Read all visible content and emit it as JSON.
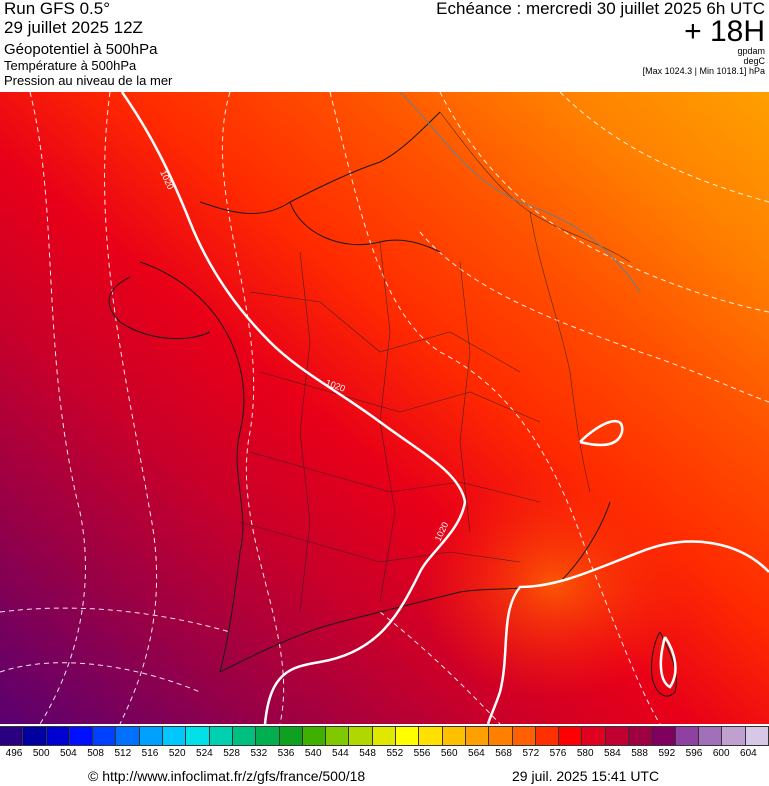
{
  "header": {
    "run": "Run GFS 0.5°",
    "date": "29 juillet 2025 12Z",
    "geopotential": "Géopotentiel à 500hPa",
    "temperature": "Température à 500hPa",
    "pressure": "Pression au niveau de la mer",
    "echeance": "Echéance : mercredi 30 juillet 2025 6h UTC",
    "lead": "+ 18H",
    "unit_geo": "gpdam",
    "unit_temp": "degC",
    "pressure_range": "[Max 1024.3 | Min 1018.1] hPa"
  },
  "map": {
    "isobar_labels": [
      "1020",
      "1020",
      "1020"
    ]
  },
  "scale": {
    "labels": [
      "496",
      "500",
      "504",
      "508",
      "512",
      "516",
      "520",
      "524",
      "528",
      "532",
      "536",
      "540",
      "544",
      "548",
      "552",
      "556",
      "560",
      "564",
      "568",
      "572",
      "576",
      "580",
      "584",
      "588",
      "592",
      "596",
      "600",
      "604"
    ],
    "colors": [
      "#2a0080",
      "#0000a0",
      "#0000d0",
      "#0010ff",
      "#0040ff",
      "#0070ff",
      "#00a0ff",
      "#00c8ff",
      "#00e0e8",
      "#00d0b0",
      "#00c080",
      "#00b050",
      "#10a020",
      "#40b000",
      "#80c800",
      "#b0d800",
      "#e0e800",
      "#ffff00",
      "#ffe000",
      "#ffc000",
      "#ffa000",
      "#ff8000",
      "#ff6000",
      "#ff3000",
      "#ff0000",
      "#e00020",
      "#c00030",
      "#a00040",
      "#800060",
      "#9040a0",
      "#a070b8",
      "#c0a0d0",
      "#d8c8e8"
    ]
  },
  "footer": {
    "url": "© http://www.infoclimat.fr/z/gfs/france/500/18",
    "timestamp": "29 juil. 2025 15:41 UTC"
  }
}
